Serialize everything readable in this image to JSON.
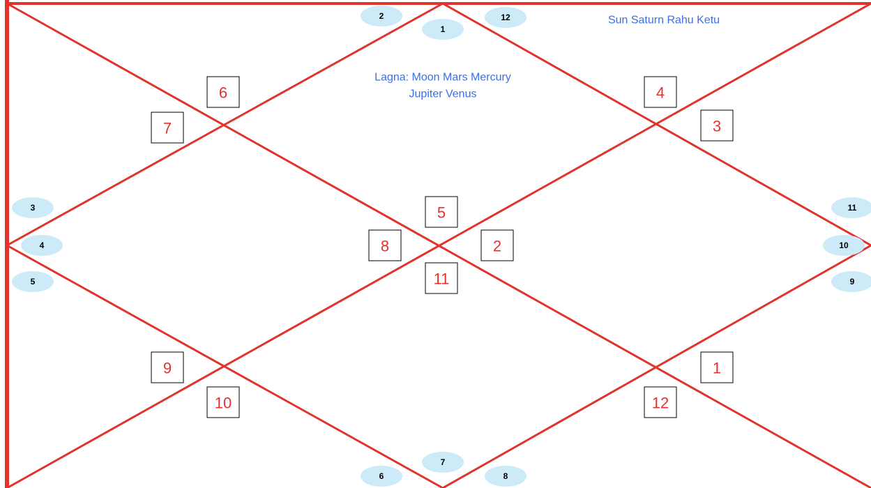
{
  "houses": [
    {
      "sign": "6"
    },
    {
      "sign": "7"
    },
    {
      "sign": "4"
    },
    {
      "sign": "3"
    },
    {
      "sign": "5"
    },
    {
      "sign": "8"
    },
    {
      "sign": "2"
    },
    {
      "sign": "11"
    },
    {
      "sign": "9"
    },
    {
      "sign": "10"
    },
    {
      "sign": "1"
    },
    {
      "sign": "12"
    }
  ],
  "markers": [
    "2",
    "1",
    "12",
    "3",
    "4",
    "5",
    "11",
    "10",
    "9",
    "6",
    "7",
    "8"
  ],
  "planets": {
    "top_right": "Sun Saturn Rahu Ketu",
    "lagna_line1": "Lagna: Moon Mars Mercury",
    "lagna_line2": "Jupiter Venus"
  }
}
